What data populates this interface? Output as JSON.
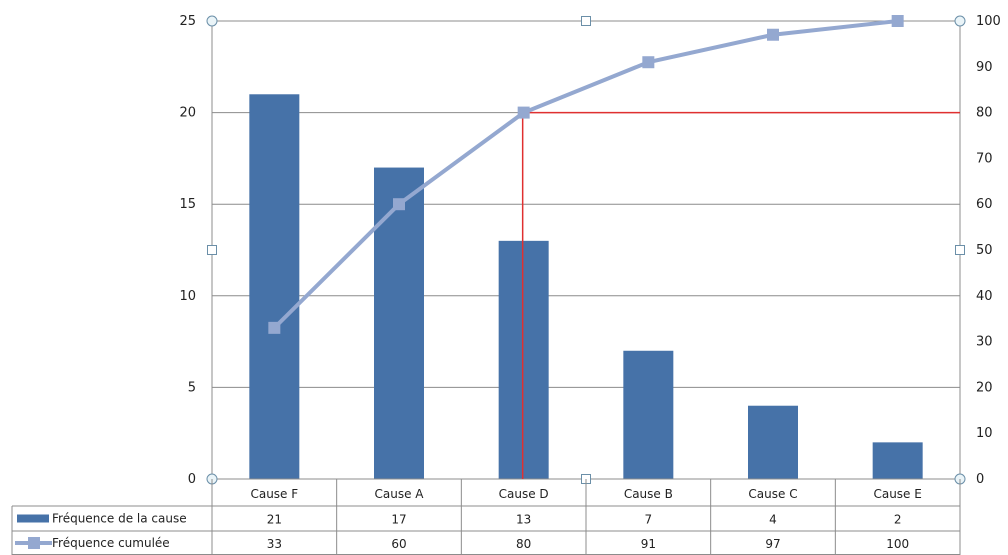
{
  "chart_data": {
    "type": "bar",
    "categories": [
      "Cause F",
      "Cause A",
      "Cause D",
      "Cause B",
      "Cause C",
      "Cause E"
    ],
    "series": [
      {
        "name": "Fréquence de la cause",
        "type": "bar",
        "axis": "left",
        "values": [
          21,
          17,
          13,
          7,
          4,
          2
        ],
        "color": "#4672a8"
      },
      {
        "name": "Fréquence cumulée",
        "type": "line",
        "axis": "right",
        "values": [
          33,
          60,
          80,
          91,
          97,
          100
        ],
        "color": "#94a8d0"
      }
    ],
    "y_left": {
      "ylim": [
        0,
        25
      ],
      "ticks": [
        "0",
        "5",
        "10",
        "15",
        "20",
        "25"
      ]
    },
    "y_right": {
      "ylim": [
        0,
        100
      ],
      "ticks": [
        "0",
        "10",
        "20",
        "30",
        "40",
        "50",
        "60",
        "70",
        "80",
        "90",
        "100"
      ]
    },
    "reference_line": {
      "category": "Cause D",
      "y_right": 80,
      "color": "#e03030"
    },
    "grid": true,
    "data_table": true,
    "title": "",
    "xlabel": "",
    "ylabel": ""
  }
}
